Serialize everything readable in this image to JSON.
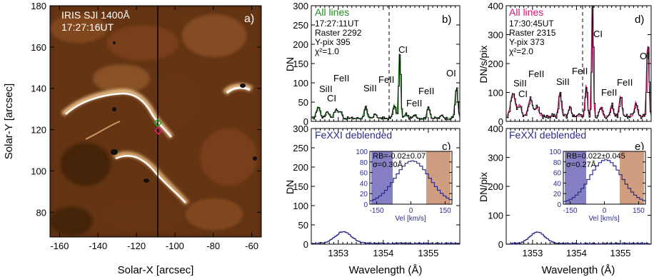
{
  "figure": {
    "panel_a": {
      "label": "a)",
      "title_line1": "IRIS SJI 1400Å",
      "title_line2": "17:27:16UT",
      "xlabel": "Solar-X [arcsec]",
      "ylabel": "Solar-Y [arcsec]",
      "xticks": [
        "-160",
        "-140",
        "-120",
        "-100",
        "-80",
        "-60"
      ],
      "yticks": [
        "180",
        "160",
        "140",
        "120",
        "100",
        "80"
      ]
    },
    "panel_b": {
      "label": "b)",
      "legend": "All lines",
      "info": [
        "17:27:11UT",
        "Raster 2292",
        "Y-pix 395",
        "χ²=1.0"
      ],
      "ylabel": "DN",
      "yticks": [
        "0",
        "50",
        "100",
        "150",
        "200",
        "250",
        "300"
      ],
      "lines": [
        "CI",
        "OI",
        "FeII",
        "FeII",
        "SiII",
        "CI",
        "SiII",
        "FeII",
        "FeII",
        "FeII"
      ]
    },
    "panel_c": {
      "label": "c)",
      "legend": "FeXXI deblended",
      "ylabel": "DN",
      "yticks": [
        "0",
        "50",
        "100",
        "150",
        "200",
        "250",
        "300"
      ],
      "xticks": [
        "1353",
        "1354",
        "1355"
      ],
      "xlabel": "Wavelength (Å)",
      "inset": {
        "rb": "RB=-0.02±0.07",
        "sigma": "σ=0.30Å",
        "xlabel": "Vel [km/s]",
        "xticks": [
          "-150",
          "0",
          "150"
        ],
        "yticks": [
          "0",
          "20",
          "40",
          "60",
          "80",
          "100"
        ]
      }
    },
    "panel_d": {
      "label": "d)",
      "legend": "All lines",
      "info": [
        "17:30:45UT",
        "Raster 2315",
        "Y-pix 373",
        "χ²=2.0"
      ],
      "ylabel": "DN/s/pix",
      "yticks": [
        "0",
        "100",
        "200",
        "300",
        "400"
      ],
      "lines": [
        "CI",
        "OI",
        "SiII",
        "FeII",
        "SiII",
        "CI",
        "FeII",
        "FeII",
        "FeII"
      ]
    },
    "panel_e": {
      "label": "e)",
      "legend": "FeXXI deblended",
      "ylabel": "DN/pix",
      "yticks": [
        "0",
        "100",
        "200",
        "300",
        "400"
      ],
      "xticks": [
        "1353",
        "1354",
        "1355"
      ],
      "xlabel": "Wavelength (Å)",
      "inset": {
        "rb": "RB=0.022±0.045",
        "sigma": "σ=0.27Å",
        "xlabel": "Vel [km/s]",
        "xticks": [
          "-150",
          "0",
          "150"
        ],
        "yticks": [
          "0",
          "20",
          "40",
          "60",
          "80",
          "100"
        ]
      }
    }
  },
  "colors": {
    "green": "#1f8a1f",
    "magenta": "#d4147a",
    "navy": "#2c2c8c",
    "blue_band": "#6f6ab8",
    "orange_band": "#c98c6a",
    "sji_dark": "#3a1c08"
  },
  "chart_data": [
    {
      "type": "line",
      "panel": "b",
      "x": [
        1352.4,
        1352.6,
        1352.8,
        1353.0,
        1353.2,
        1353.4,
        1353.6,
        1353.8,
        1354.0,
        1354.2,
        1354.3,
        1354.36,
        1354.45,
        1354.6,
        1354.8,
        1355.0,
        1355.1,
        1355.3,
        1355.5,
        1355.6
      ],
      "series": [
        {
          "name": "All lines",
          "values": [
            5,
            40,
            15,
            25,
            10,
            10,
            40,
            15,
            8,
            30,
            60,
            175,
            25,
            20,
            18,
            40,
            15,
            15,
            20,
            85
          ]
        }
      ],
      "xlim": [
        1352.4,
        1355.7
      ],
      "ylim": [
        0,
        300
      ]
    },
    {
      "type": "line",
      "panel": "c",
      "x": [
        1352.4,
        1352.8,
        1353.0,
        1353.1,
        1353.3,
        1353.6,
        1354.0,
        1355.0,
        1355.7
      ],
      "values": [
        0,
        10,
        25,
        32,
        20,
        6,
        2,
        2,
        2
      ],
      "xlim": [
        1352.4,
        1355.7
      ],
      "ylim": [
        0,
        300
      ]
    },
    {
      "type": "line",
      "panel": "d",
      "x": [
        1352.4,
        1352.6,
        1352.8,
        1353.0,
        1353.2,
        1353.4,
        1353.6,
        1353.8,
        1354.0,
        1354.2,
        1354.3,
        1354.36,
        1354.45,
        1354.6,
        1354.8,
        1355.0,
        1355.2,
        1355.4,
        1355.6
      ],
      "series": [
        {
          "name": "All lines",
          "values": [
            30,
            110,
            80,
            100,
            40,
            40,
            120,
            45,
            25,
            120,
            50,
            400,
            60,
            40,
            55,
            90,
            40,
            70,
            280
          ]
        }
      ],
      "xlim": [
        1352.4,
        1355.7
      ],
      "ylim": [
        0,
        400
      ]
    },
    {
      "type": "line",
      "panel": "e",
      "x": [
        1352.4,
        1352.8,
        1353.0,
        1353.1,
        1353.3,
        1353.6,
        1354.0,
        1355.0,
        1355.7
      ],
      "values": [
        0,
        14,
        35,
        42,
        28,
        8,
        3,
        2,
        2
      ],
      "xlim": [
        1352.4,
        1355.7
      ],
      "ylim": [
        0,
        400
      ]
    }
  ]
}
